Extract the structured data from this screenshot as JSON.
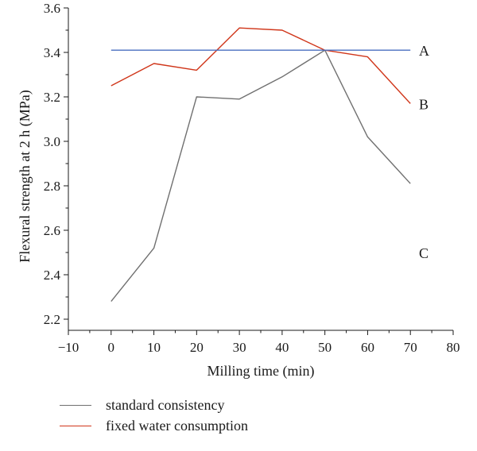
{
  "chart_data": {
    "type": "line",
    "xlabel": "Milling time (min)",
    "ylabel": "Flexural strength at 2 h (MPa)",
    "xlim": [
      -10,
      80
    ],
    "ylim": [
      2.15,
      3.6
    ],
    "x_ticks": [
      -10,
      0,
      10,
      20,
      30,
      40,
      50,
      60,
      70,
      80
    ],
    "y_ticks": [
      2.2,
      2.4,
      2.6,
      2.8,
      3.0,
      3.2,
      3.4,
      3.6
    ],
    "x_tick_labels": [
      "−10",
      "0",
      "10",
      "20",
      "30",
      "40",
      "50",
      "60",
      "70",
      "80"
    ],
    "y_tick_labels": [
      "2.2",
      "2.4",
      "2.6",
      "2.8",
      "3.0",
      "3.2",
      "3.4",
      "3.6"
    ],
    "grid": false,
    "legend_position": "bottom",
    "series": [
      {
        "name": "standard consistency",
        "color": "#707070",
        "x": [
          0,
          10,
          20,
          30,
          40,
          50,
          60,
          70
        ],
        "y": [
          2.28,
          2.52,
          3.2,
          3.19,
          3.29,
          3.41,
          3.02,
          2.81
        ],
        "in_legend": true
      },
      {
        "name": "fixed water consumption",
        "color": "#d0361a",
        "x": [
          0,
          10,
          20,
          30,
          40,
          50,
          60,
          70
        ],
        "y": [
          3.25,
          3.35,
          3.32,
          3.51,
          3.5,
          3.41,
          3.38,
          3.17
        ],
        "in_legend": true
      },
      {
        "color": "#4a6fc0",
        "x": [
          0,
          70
        ],
        "y": [
          3.41,
          3.41
        ],
        "in_legend": false
      }
    ],
    "annotations": [
      {
        "text": "A",
        "x": 72,
        "y": 3.41
      },
      {
        "text": "B",
        "x": 72,
        "y": 3.17
      },
      {
        "text": "C",
        "x": 72,
        "y": 2.5
      }
    ]
  }
}
